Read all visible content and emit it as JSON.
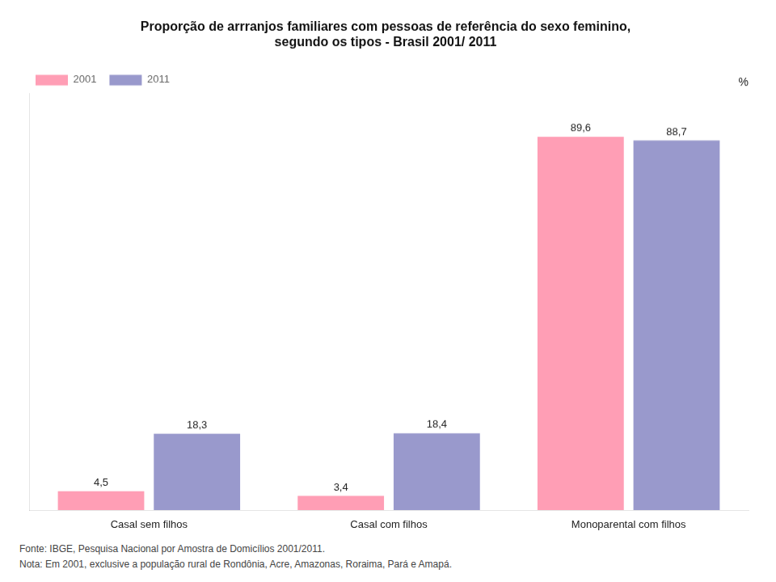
{
  "chart_data": {
    "type": "bar",
    "title": [
      "Proporção de arrranjos familiares com pessoas de referência do sexo feminino,",
      "segundo os tipos - Brasil 2001/ 2011"
    ],
    "ylabel": "%",
    "categories": [
      "Casal sem filhos",
      "Casal com filhos",
      "Monoparental com filhos"
    ],
    "series": [
      {
        "name": "2001",
        "color": "#FF9EB5",
        "values": [
          4.5,
          3.4,
          89.6
        ],
        "value_labels": [
          "4,5",
          "3,4",
          "89,6"
        ]
      },
      {
        "name": "2011",
        "color": "#9999CC",
        "values": [
          18.3,
          18.4,
          88.7
        ],
        "value_labels": [
          "18,3",
          "18,4",
          "88,7"
        ]
      }
    ],
    "ylim": [
      0,
      100
    ],
    "grid": false,
    "legend": "upper left",
    "data_labels": true,
    "tick_labels": "x",
    "annotations": [
      "Fonte: IBGE,  Pesquisa Nacional por Amostra de Domicílios 2001/2011.",
      "Nota: Em 2001, exclusive a população rural de Rondônia, Acre, Amazonas, Roraima, Pará e Amapá."
    ]
  }
}
